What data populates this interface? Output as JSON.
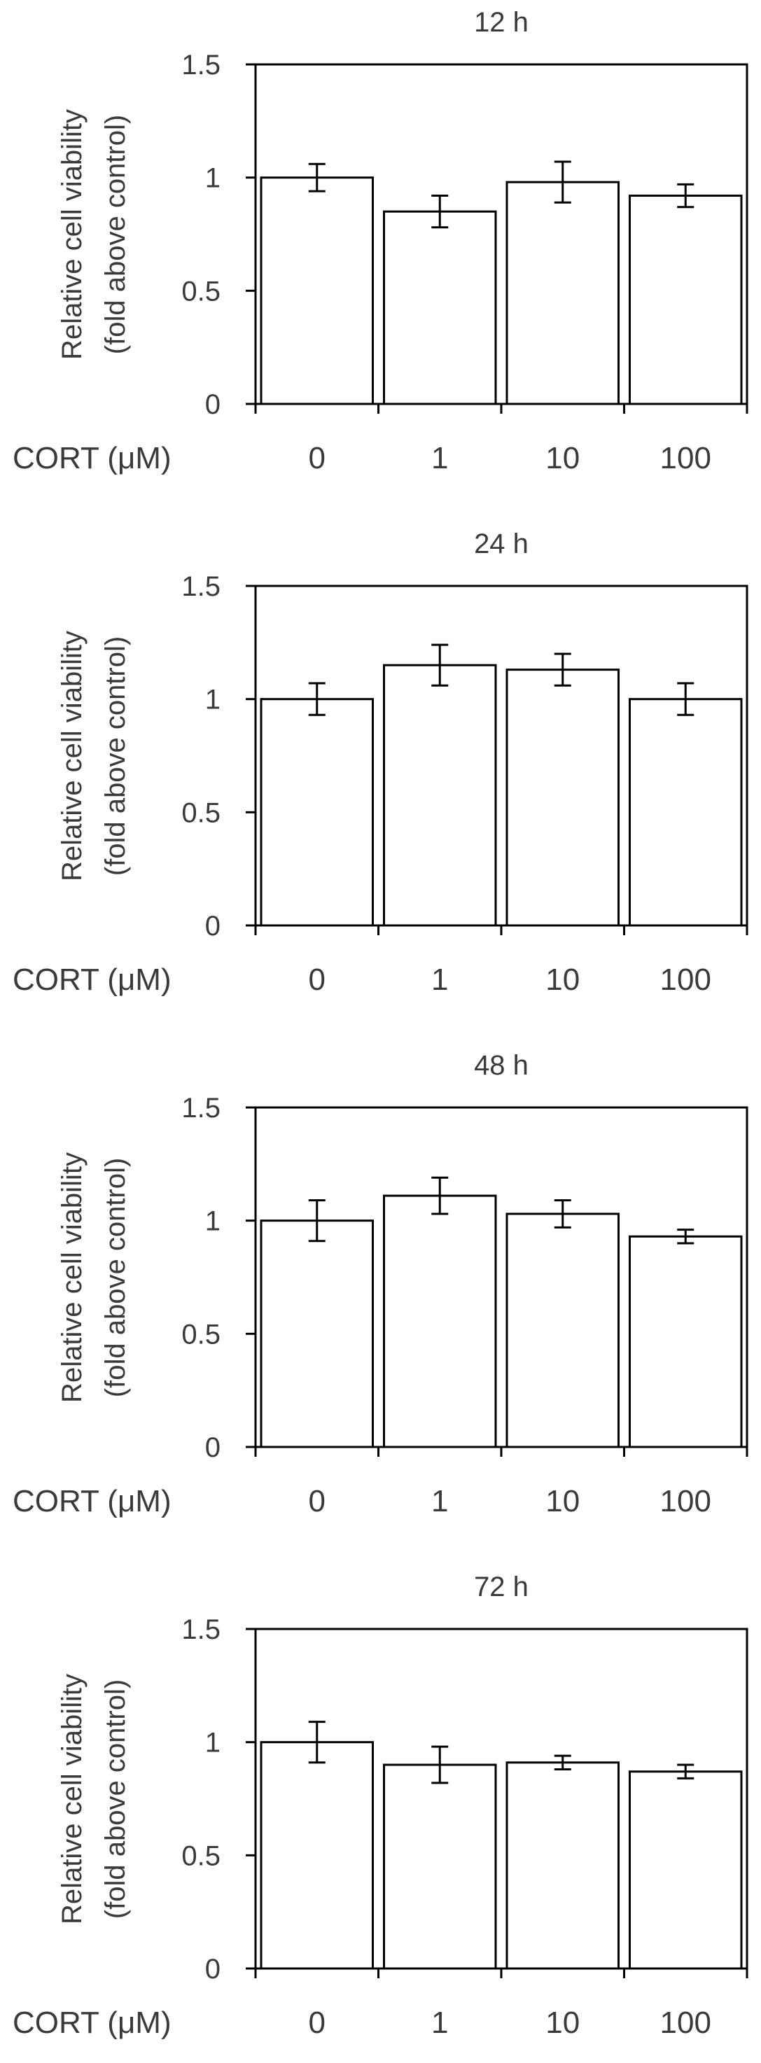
{
  "chart_data": [
    {
      "type": "bar",
      "title": "12 h",
      "ylabel_line1": "Relative cell viability",
      "ylabel_line2": "(fold above control)",
      "xlabel": "CORT (μM)",
      "categories": [
        "0",
        "1",
        "10",
        "100"
      ],
      "values": [
        1.0,
        0.85,
        0.98,
        0.92
      ],
      "errors": [
        0.06,
        0.07,
        0.09,
        0.05
      ],
      "ylim": [
        0,
        1.5
      ],
      "yticks": [
        0,
        0.5,
        1,
        1.5
      ],
      "ytick_labels": [
        "0",
        "0.5",
        "1",
        "1.5"
      ],
      "grid": false,
      "bar_fill": "#ffffff",
      "bar_stroke": "#000000"
    },
    {
      "type": "bar",
      "title": "24 h",
      "ylabel_line1": "Relative cell viability",
      "ylabel_line2": "(fold above control)",
      "xlabel": "CORT (μM)",
      "categories": [
        "0",
        "1",
        "10",
        "100"
      ],
      "values": [
        1.0,
        1.15,
        1.13,
        1.0
      ],
      "errors": [
        0.07,
        0.09,
        0.07,
        0.07
      ],
      "ylim": [
        0,
        1.5
      ],
      "yticks": [
        0,
        0.5,
        1,
        1.5
      ],
      "ytick_labels": [
        "0",
        "0.5",
        "1",
        "1.5"
      ],
      "grid": false,
      "bar_fill": "#ffffff",
      "bar_stroke": "#000000"
    },
    {
      "type": "bar",
      "title": "48 h",
      "ylabel_line1": "Relative cell viability",
      "ylabel_line2": "(fold above control)",
      "xlabel": "CORT (μM)",
      "categories": [
        "0",
        "1",
        "10",
        "100"
      ],
      "values": [
        1.0,
        1.11,
        1.03,
        0.93
      ],
      "errors": [
        0.09,
        0.08,
        0.06,
        0.03
      ],
      "ylim": [
        0,
        1.5
      ],
      "yticks": [
        0,
        0.5,
        1,
        1.5
      ],
      "ytick_labels": [
        "0",
        "0.5",
        "1",
        "1.5"
      ],
      "grid": false,
      "bar_fill": "#ffffff",
      "bar_stroke": "#000000"
    },
    {
      "type": "bar",
      "title": "72 h",
      "ylabel_line1": "Relative cell viability",
      "ylabel_line2": "(fold above control)",
      "xlabel": "CORT (μM)",
      "categories": [
        "0",
        "1",
        "10",
        "100"
      ],
      "values": [
        1.0,
        0.9,
        0.91,
        0.87
      ],
      "errors": [
        0.09,
        0.08,
        0.03,
        0.03
      ],
      "ylim": [
        0,
        1.5
      ],
      "yticks": [
        0,
        0.5,
        1,
        1.5
      ],
      "ytick_labels": [
        "0",
        "0.5",
        "1",
        "1.5"
      ],
      "grid": false,
      "bar_fill": "#ffffff",
      "bar_stroke": "#000000"
    }
  ]
}
